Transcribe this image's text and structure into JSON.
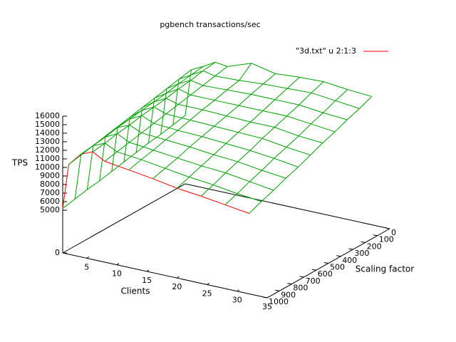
{
  "chart_data": {
    "type": "surface3d",
    "title": "pgbench transactions/sec",
    "legend": "\"3d.txt\" u 2:1:3",
    "legend_position": "top-right",
    "color": "#ff0000",
    "surface_color": "#00a000",
    "xlabel": "Clients",
    "ylabel": "Scaling factor",
    "zlabel": "TPS",
    "x": [
      1,
      2,
      4,
      6,
      8,
      12,
      16,
      20,
      24,
      28,
      32
    ],
    "y": [
      0,
      100,
      200,
      300,
      400,
      500,
      600,
      700,
      800,
      900,
      1000
    ],
    "z": [
      [
        8000,
        13500,
        14200,
        15000,
        14800,
        15800,
        15200,
        15400,
        15500,
        15200,
        15000
      ],
      [
        7700,
        13200,
        14000,
        14800,
        14500,
        14600,
        14800,
        14900,
        15000,
        14700,
        14400
      ],
      [
        7400,
        12900,
        13800,
        14500,
        14200,
        14300,
        14400,
        14400,
        14400,
        14100,
        13900
      ],
      [
        7200,
        12600,
        13500,
        14300,
        13900,
        13900,
        13900,
        13900,
        13900,
        13600,
        13300
      ],
      [
        6900,
        12300,
        13300,
        14000,
        13600,
        13600,
        13500,
        13400,
        13400,
        13000,
        12800
      ],
      [
        6600,
        12000,
        13100,
        13800,
        13300,
        13200,
        13100,
        13000,
        12900,
        12500,
        12200
      ],
      [
        6300,
        11700,
        12900,
        13600,
        13000,
        12800,
        12700,
        12500,
        12300,
        12000,
        11600
      ],
      [
        6000,
        11400,
        12700,
        13300,
        12700,
        12500,
        12300,
        12000,
        11800,
        11400,
        11100
      ],
      [
        5800,
        11100,
        12400,
        13100,
        12400,
        12100,
        11800,
        11500,
        11300,
        10900,
        10500
      ],
      [
        5500,
        10800,
        12200,
        12800,
        12100,
        11800,
        11400,
        11000,
        10700,
        10300,
        10000
      ],
      [
        5200,
        10500,
        12000,
        12600,
        11800,
        11400,
        11000,
        10500,
        10200,
        9800,
        9400
      ]
    ],
    "xlim": [
      1,
      35
    ],
    "xticks": [
      5,
      10,
      15,
      20,
      25,
      30,
      35
    ],
    "ylim": [
      0,
      1000
    ],
    "yticks": [
      0,
      100,
      200,
      300,
      400,
      500,
      600,
      700,
      800,
      900,
      1000
    ],
    "zlim": [
      0,
      16000
    ],
    "zticks": [
      0,
      5000,
      6000,
      7000,
      8000,
      9000,
      10000,
      11000,
      12000,
      13000,
      14000,
      15000,
      16000
    ]
  }
}
